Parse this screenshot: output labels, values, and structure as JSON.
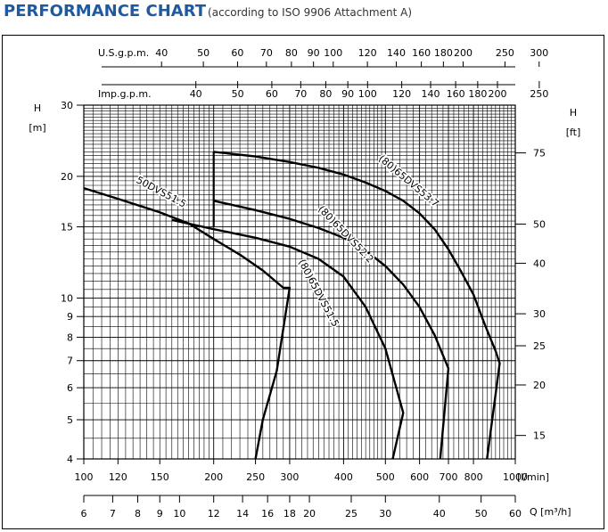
{
  "header": {
    "title": "PERFORMANCE CHART",
    "subtitle": "(according to ISO 9906 Attachment A)"
  },
  "colors": {
    "title": "#1e5aa0",
    "grid": "#000000",
    "curve": "#000000"
  },
  "chart_data": {
    "type": "line",
    "x_scale": "log",
    "y_scale": "log",
    "grid": true,
    "xlim_l_per_min": [
      100,
      1000
    ],
    "ylim_m": [
      4,
      30
    ],
    "axes": {
      "left": {
        "label_line1": "H",
        "label_line2": "[m]",
        "ticks": [
          {
            "v": 30,
            "t": "30"
          },
          {
            "v": 20,
            "t": "20"
          },
          {
            "v": 15,
            "t": "15"
          },
          {
            "v": 10,
            "t": "10"
          },
          {
            "v": 9,
            "t": "9"
          },
          {
            "v": 8,
            "t": "8"
          },
          {
            "v": 7,
            "t": "7"
          },
          {
            "v": 6,
            "t": "6"
          },
          {
            "v": 5,
            "t": "5"
          },
          {
            "v": 4,
            "t": "4"
          }
        ]
      },
      "right": {
        "label_line1": "H",
        "label_line2": "[ft]",
        "ticks": [
          {
            "v": 75,
            "t": "75"
          },
          {
            "v": 50,
            "t": "50"
          },
          {
            "v": 40,
            "t": "40"
          },
          {
            "v": 30,
            "t": "30"
          },
          {
            "v": 25,
            "t": "25"
          },
          {
            "v": 20,
            "t": "20"
          },
          {
            "v": 15,
            "t": "15"
          }
        ]
      },
      "bottom_lmin": {
        "label": "[l/min]",
        "ticks": [
          {
            "v": 100,
            "t": "100"
          },
          {
            "v": 120,
            "t": "120"
          },
          {
            "v": 150,
            "t": "150"
          },
          {
            "v": 200,
            "t": "200"
          },
          {
            "v": 250,
            "t": "250"
          },
          {
            "v": 300,
            "t": "300"
          },
          {
            "v": 400,
            "t": "400"
          },
          {
            "v": 500,
            "t": "500"
          },
          {
            "v": 600,
            "t": "600"
          },
          {
            "v": 700,
            "t": "700"
          },
          {
            "v": 800,
            "t": "800"
          },
          {
            "v": 1000,
            "t": "1000"
          }
        ]
      },
      "bottom_m3h": {
        "label": "Q [m³/h]",
        "ticks": [
          {
            "v": 6,
            "t": "6"
          },
          {
            "v": 7,
            "t": "7"
          },
          {
            "v": 8,
            "t": "8"
          },
          {
            "v": 9,
            "t": "9"
          },
          {
            "v": 10,
            "t": "10"
          },
          {
            "v": 12,
            "t": "12"
          },
          {
            "v": 14,
            "t": "14"
          },
          {
            "v": 16,
            "t": "16"
          },
          {
            "v": 18,
            "t": "18"
          },
          {
            "v": 20,
            "t": "20"
          },
          {
            "v": 25,
            "t": "25"
          },
          {
            "v": 30,
            "t": "30"
          },
          {
            "v": 40,
            "t": "40"
          },
          {
            "v": 50,
            "t": "50"
          },
          {
            "v": 60,
            "t": "60"
          }
        ]
      },
      "top_usgpm": {
        "label": "U.S.g.p.m.",
        "ticks": [
          {
            "v": 40,
            "t": "40"
          },
          {
            "v": 50,
            "t": "50"
          },
          {
            "v": 60,
            "t": "60"
          },
          {
            "v": 70,
            "t": "70"
          },
          {
            "v": 80,
            "t": "80"
          },
          {
            "v": 90,
            "t": "90"
          },
          {
            "v": 100,
            "t": "100"
          },
          {
            "v": 120,
            "t": "120"
          },
          {
            "v": 140,
            "t": "140"
          },
          {
            "v": 160,
            "t": "160"
          },
          {
            "v": 180,
            "t": "180"
          },
          {
            "v": 200,
            "t": "200"
          },
          {
            "v": 250,
            "t": "250"
          },
          {
            "v": 300,
            "t": "300"
          }
        ]
      },
      "top_impgpm": {
        "label": "Imp.g.p.m.",
        "ticks": [
          {
            "v": 40,
            "t": "40"
          },
          {
            "v": 50,
            "t": "50"
          },
          {
            "v": 60,
            "t": "60"
          },
          {
            "v": 70,
            "t": "70"
          },
          {
            "v": 80,
            "t": "80"
          },
          {
            "v": 90,
            "t": "90"
          },
          {
            "v": 100,
            "t": "100"
          },
          {
            "v": 120,
            "t": "120"
          },
          {
            "v": 140,
            "t": "140"
          },
          {
            "v": 160,
            "t": "160"
          },
          {
            "v": 180,
            "t": "180"
          },
          {
            "v": 200,
            "t": "200"
          },
          {
            "v": 250,
            "t": "250"
          }
        ]
      }
    },
    "series": [
      {
        "name": "50DVS51.5",
        "points": [
          [
            100,
            18.7
          ],
          [
            120,
            17.6
          ],
          [
            150,
            16.3
          ],
          [
            175,
            15.3
          ],
          [
            200,
            14.0
          ],
          [
            230,
            12.8
          ],
          [
            260,
            11.7
          ],
          [
            290,
            10.6
          ],
          [
            300,
            10.6
          ],
          [
            280,
            6.6
          ],
          [
            260,
            5.0
          ],
          [
            250,
            4.0
          ]
        ]
      },
      {
        "name": "(80)65DVS51.5",
        "points": [
          [
            160,
            15.6
          ],
          [
            200,
            14.8
          ],
          [
            250,
            14.1
          ],
          [
            300,
            13.4
          ],
          [
            350,
            12.5
          ],
          [
            400,
            11.3
          ],
          [
            450,
            9.5
          ],
          [
            500,
            7.5
          ],
          [
            530,
            6.0
          ],
          [
            550,
            5.2
          ],
          [
            520,
            4.0
          ]
        ]
      },
      {
        "name": "(80)65DVS52.2",
        "points": [
          [
            200,
            17.4
          ],
          [
            250,
            16.5
          ],
          [
            300,
            15.7
          ],
          [
            350,
            14.9
          ],
          [
            400,
            14.1
          ],
          [
            450,
            13.1
          ],
          [
            500,
            12.0
          ],
          [
            550,
            10.8
          ],
          [
            600,
            9.5
          ],
          [
            650,
            8.1
          ],
          [
            700,
            6.7
          ],
          [
            670,
            4.0
          ]
        ]
      },
      {
        "name": "(80)65DVS53.7",
        "points": [
          [
            200,
            23.0
          ],
          [
            250,
            22.4
          ],
          [
            300,
            21.7
          ],
          [
            350,
            21.0
          ],
          [
            400,
            20.2
          ],
          [
            450,
            19.3
          ],
          [
            500,
            18.4
          ],
          [
            550,
            17.4
          ],
          [
            600,
            16.2
          ],
          [
            650,
            14.8
          ],
          [
            700,
            13.2
          ],
          [
            750,
            11.6
          ],
          [
            800,
            10.2
          ],
          [
            850,
            8.6
          ],
          [
            900,
            7.4
          ],
          [
            920,
            6.9
          ],
          [
            860,
            4.0
          ]
        ]
      }
    ],
    "connectors": [
      {
        "name": "(80)65DVS53.7-start",
        "points": [
          [
            200,
            15.0
          ],
          [
            200,
            23.0
          ]
        ]
      },
      {
        "name": "(80)65DVS52.2-start",
        "points": [
          [
            200,
            17.4
          ],
          [
            200,
            17.4
          ]
        ]
      }
    ]
  }
}
